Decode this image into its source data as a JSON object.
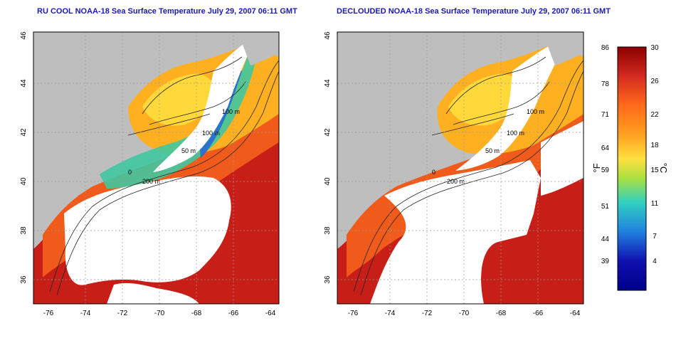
{
  "maps": [
    {
      "title": "RU COOL NOAA-18 Sea Surface Temperature July 29, 2007 06:11 GMT",
      "contour_labels": [
        "100 m",
        "100 m",
        "50 m",
        "200 m",
        "0"
      ]
    },
    {
      "title": "DECLOUDED NOAA-18 Sea Surface Temperature July 29, 2007 06:11 GMT",
      "contour_labels": [
        "100 m",
        "100 m",
        "50 m",
        "200 m",
        "0"
      ]
    }
  ],
  "axes": {
    "lat_ticks": [
      "46",
      "44",
      "42",
      "40",
      "38",
      "36"
    ],
    "lon_ticks": [
      "-76",
      "-74",
      "-72",
      "-70",
      "-68",
      "-66",
      "-64"
    ]
  },
  "colorbar": {
    "fahrenheit_ticks": [
      "86",
      "78",
      "71",
      "64",
      "59",
      "51",
      "44",
      "39"
    ],
    "celsius_ticks": [
      "30",
      "26",
      "22",
      "18",
      "15",
      "11",
      "7",
      "4"
    ],
    "fahrenheit_unit": "°F",
    "celsius_unit": "°C",
    "colors": [
      "#8b0000",
      "#d42a20",
      "#ff6a1a",
      "#ffa020",
      "#ffe040",
      "#a8e040",
      "#30d0c0",
      "#2080e0",
      "#1010b0",
      "#00008a"
    ]
  },
  "colors": {
    "land": "#bebebe",
    "cloud": "#ffffff",
    "title": "#1a1ab4"
  }
}
